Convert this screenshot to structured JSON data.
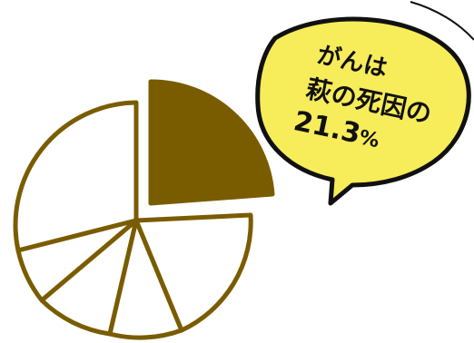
{
  "pie": {
    "highlight_share_percent": 21.3,
    "slice_count": 6,
    "colors": {
      "stroke": "#7a5c00",
      "highlight_fill": "#7a5c00",
      "plain_fill": "#ffffff"
    }
  },
  "bubble": {
    "line1": "がんは",
    "line2": "萩の死因の",
    "number": "21.3",
    "unit": "%",
    "colors": {
      "fill": "#f7ec5a",
      "outline": "#111111"
    }
  }
}
